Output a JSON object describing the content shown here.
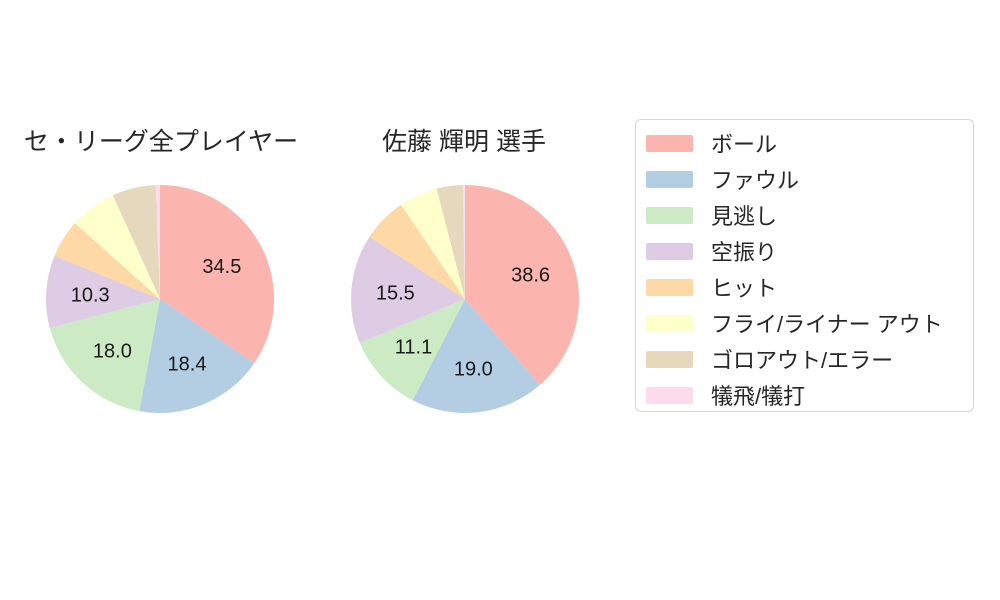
{
  "page": {
    "background": "#ffffff",
    "text_color": "#262626"
  },
  "chart_data": [
    {
      "type": "pie",
      "title": "セ・リーグ全プレイヤー",
      "categories": [
        "ボール",
        "ファウル",
        "見逃し",
        "空振り",
        "ヒット",
        "フライ/ライナー アウト",
        "ゴロアウト/エラー",
        "犠飛/犠打"
      ],
      "values": [
        34.5,
        18.4,
        18.0,
        10.3,
        5.4,
        6.6,
        6.2,
        0.6
      ],
      "value_labels": [
        "34.5",
        "18.4",
        "18.0",
        "10.3",
        "",
        "",
        "",
        ""
      ],
      "colors": [
        "#fbb4ae",
        "#b3cde3",
        "#ccebc5",
        "#decbe4",
        "#fed9a6",
        "#ffffcc",
        "#e5d8bd",
        "#fddaec"
      ],
      "start_angle": "12-oclock",
      "direction": "clockwise",
      "units": "percent"
    },
    {
      "type": "pie",
      "title": "佐藤 輝明  選手",
      "categories": [
        "ボール",
        "ファウル",
        "見逃し",
        "空振り",
        "ヒット",
        "フライ/ライナー アウト",
        "ゴロアウト/エラー",
        "犠飛/犠打"
      ],
      "values": [
        38.6,
        19.0,
        11.1,
        15.5,
        6.3,
        5.5,
        3.7,
        0.3
      ],
      "value_labels": [
        "38.6",
        "19.0",
        "11.1",
        "15.5",
        "",
        "",
        "",
        ""
      ],
      "colors": [
        "#fbb4ae",
        "#b3cde3",
        "#ccebc5",
        "#decbe4",
        "#fed9a6",
        "#ffffcc",
        "#e5d8bd",
        "#fddaec"
      ],
      "start_angle": "12-oclock",
      "direction": "clockwise",
      "units": "percent"
    }
  ],
  "legend": {
    "position": "right",
    "items": [
      {
        "label": "ボール",
        "color": "#fbb4ae"
      },
      {
        "label": "ファウル",
        "color": "#b3cde3"
      },
      {
        "label": "見逃し",
        "color": "#ccebc5"
      },
      {
        "label": "空振り",
        "color": "#decbe4"
      },
      {
        "label": "ヒット",
        "color": "#fed9a6"
      },
      {
        "label": "フライ/ライナー アウト",
        "color": "#ffffcc"
      },
      {
        "label": "ゴロアウト/エラー",
        "color": "#e5d8bd"
      },
      {
        "label": "犠飛/犠打",
        "color": "#fddaec"
      }
    ]
  }
}
